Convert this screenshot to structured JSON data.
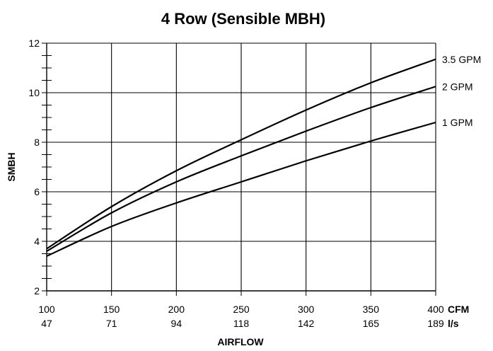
{
  "chart_data": {
    "type": "line",
    "title": "4 Row (Sensible MBH)",
    "xlabel": "AIRFLOW",
    "ylabel": "SMBH",
    "x_unit_primary": "CFM",
    "x_unit_secondary": "l/s",
    "xlim": [
      100,
      400
    ],
    "ylim": [
      2,
      12
    ],
    "x_ticks": [
      100,
      150,
      200,
      250,
      300,
      350,
      400
    ],
    "x_ticks_secondary": [
      "47",
      "71",
      "94",
      "118",
      "142",
      "165",
      "189"
    ],
    "y_ticks": [
      2,
      4,
      6,
      8,
      10,
      12
    ],
    "y_minor_step": 0.5,
    "grid": true,
    "legend": "inline-right",
    "series": [
      {
        "name": "3.5 GPM",
        "x": [
          100,
          150,
          200,
          250,
          300,
          350,
          400
        ],
        "y": [
          3.7,
          5.4,
          6.85,
          8.1,
          9.3,
          10.4,
          11.35
        ]
      },
      {
        "name": "2 GPM",
        "x": [
          100,
          150,
          200,
          250,
          300,
          350,
          400
        ],
        "y": [
          3.6,
          5.15,
          6.4,
          7.45,
          8.45,
          9.4,
          10.25
        ]
      },
      {
        "name": "1 GPM",
        "x": [
          100,
          150,
          200,
          250,
          300,
          350,
          400
        ],
        "y": [
          3.4,
          4.6,
          5.55,
          6.4,
          7.25,
          8.05,
          8.8
        ]
      }
    ]
  }
}
